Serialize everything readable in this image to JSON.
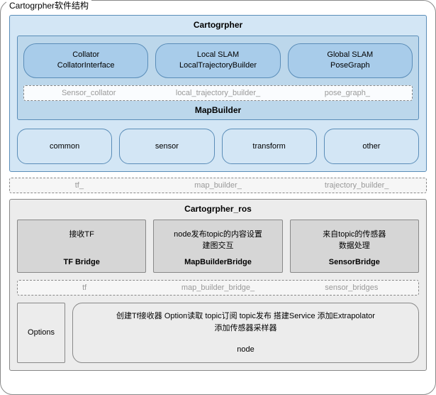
{
  "title": "Cartogrpher软件结构",
  "cartographer": {
    "title": "Cartogrpher",
    "slam": [
      {
        "l1": "Collator",
        "l2": "CollatorInterface"
      },
      {
        "l1": "Local SLAM",
        "l2": "LocalTrajectoryBuilder"
      },
      {
        "l1": "Global SLAM",
        "l2": "PoseGraph"
      }
    ],
    "members": [
      "Sensor_collator",
      "local_trajectory_builder_",
      "pose_graph_"
    ],
    "mapbuilder": "MapBuilder",
    "modules": [
      "common",
      "sensor",
      "transform",
      "other"
    ]
  },
  "link": [
    "tf_",
    "map_builder_",
    "trajectory_builder_"
  ],
  "ros": {
    "title": "Cartogrpher_ros",
    "bridges": [
      {
        "desc1": "接收TF",
        "desc2": "",
        "name": "TF Bridge"
      },
      {
        "desc1": "node发布topic的内容设置",
        "desc2": "建图交互",
        "name": "MapBuilderBridge"
      },
      {
        "desc1": "来自topic的传感器",
        "desc2": "数据处理",
        "name": "SensorBridge"
      }
    ],
    "bridge_members": [
      "tf",
      "map_builder_bridge_",
      "sensor_bridges"
    ],
    "options": "Options",
    "node": {
      "l1": "创建Tf接收器 Option读取 topic订阅 topic发布 搭建Service 添加Extrapolator",
      "l2": "添加传感器采样器",
      "name": "node"
    }
  },
  "colors": {
    "blue_light": "#d3e6f5",
    "blue_mid": "#bcd7eb",
    "blue_dark": "#a8ccea",
    "blue_border": "#5a8db8",
    "grey_bg": "#ececec",
    "grey_box": "#d6d6d6",
    "grey_border": "#888888"
  }
}
